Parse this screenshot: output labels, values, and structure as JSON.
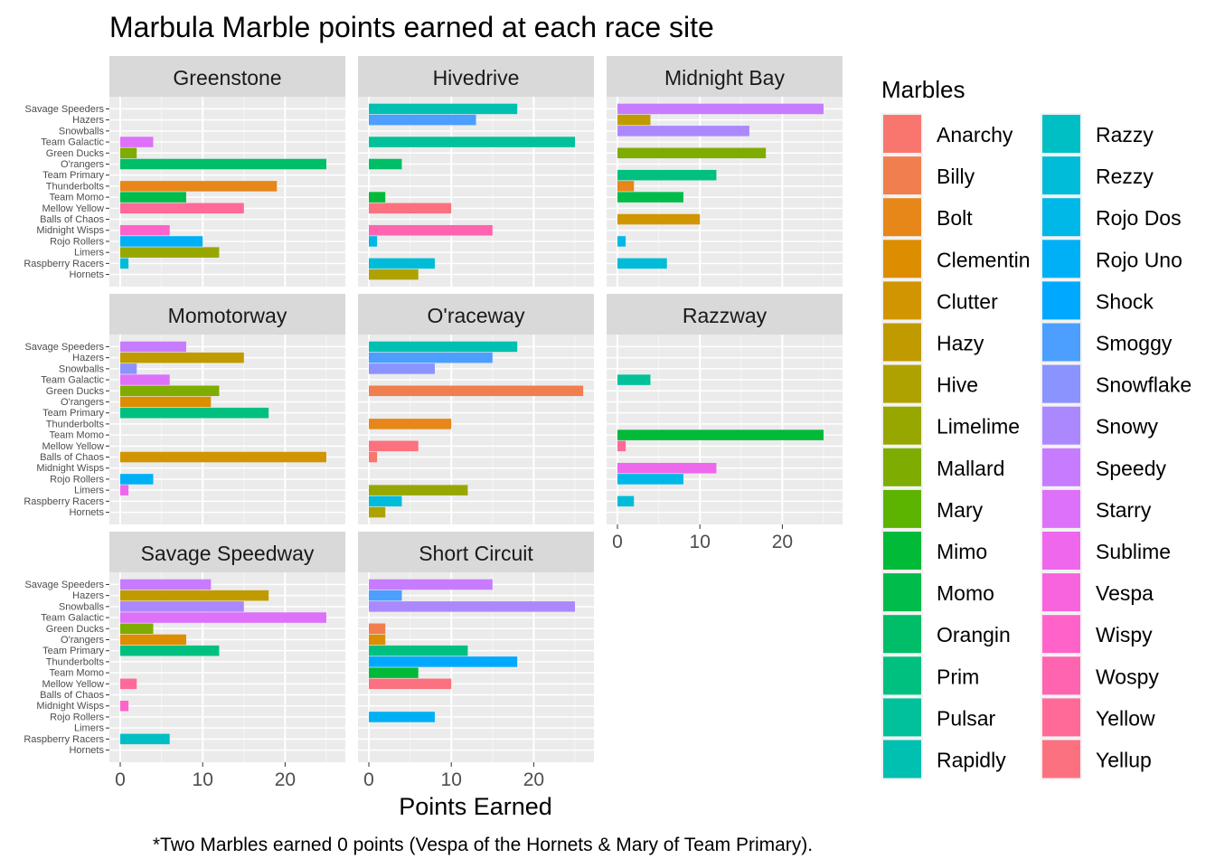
{
  "chart_data": {
    "type": "bar",
    "orientation": "horizontal",
    "title": "Marbula Marble points earned at each race site",
    "xlabel": "Points Earned",
    "ylabel": "",
    "caption": "*Two Marbles earned 0 points (Vespa of the Hornets & Mary of Team Primary).",
    "xlim": [
      0,
      27.5
    ],
    "x_ticks": [
      "0",
      "10",
      "20"
    ],
    "legend_title": "Marbles",
    "legend_position": "right",
    "teams": [
      "Savage Speeders",
      "Hazers",
      "Snowballs",
      "Team Galactic",
      "Green Ducks",
      "O'rangers",
      "Team Primary",
      "Thunderbolts",
      "Team Momo",
      "Mellow Yellow",
      "Balls of Chaos",
      "Midnight Wisps",
      "Rojo Rollers",
      "Limers",
      "Raspberry Racers",
      "Hornets"
    ],
    "marbles": [
      {
        "name": "Anarchy",
        "color": "#F8766D"
      },
      {
        "name": "Billy",
        "color": "#F17E4F"
      },
      {
        "name": "Bolt",
        "color": "#E78619"
      },
      {
        "name": "Clementin",
        "color": "#DD8D00"
      },
      {
        "name": "Clutter",
        "color": "#D09500"
      },
      {
        "name": "Hazy",
        "color": "#C09B00"
      },
      {
        "name": "Hive",
        "color": "#AEA200"
      },
      {
        "name": "Limelime",
        "color": "#98A700"
      },
      {
        "name": "Mallard",
        "color": "#7EAC00"
      },
      {
        "name": "Mary",
        "color": "#5CB300"
      },
      {
        "name": "Mimo",
        "color": "#00BA38"
      },
      {
        "name": "Momo",
        "color": "#00BC4A"
      },
      {
        "name": "Orangin",
        "color": "#00BE67"
      },
      {
        "name": "Prim",
        "color": "#00C080"
      },
      {
        "name": "Pulsar",
        "color": "#00C19A"
      },
      {
        "name": "Rapidly",
        "color": "#00C0B1"
      },
      {
        "name": "Razzy",
        "color": "#00BFC4"
      },
      {
        "name": "Rezzy",
        "color": "#00BCD8"
      },
      {
        "name": "Rojo Dos",
        "color": "#00B8E7"
      },
      {
        "name": "Rojo Uno",
        "color": "#00B0F6"
      },
      {
        "name": "Shock",
        "color": "#00A9FF"
      },
      {
        "name": "Smoggy",
        "color": "#4C9EFF"
      },
      {
        "name": "Snowflake",
        "color": "#8B93FF"
      },
      {
        "name": "Snowy",
        "color": "#AC88FF"
      },
      {
        "name": "Speedy",
        "color": "#C77CFF"
      },
      {
        "name": "Starry",
        "color": "#DD71FA"
      },
      {
        "name": "Sublime",
        "color": "#EE67EC"
      },
      {
        "name": "Vespa",
        "color": "#F864DD"
      },
      {
        "name": "Wispy",
        "color": "#FF63C9"
      },
      {
        "name": "Wospy",
        "color": "#FF64B0"
      },
      {
        "name": "Yellow",
        "color": "#FF6A98"
      },
      {
        "name": "Yellup",
        "color": "#FC717F"
      }
    ],
    "panels": [
      {
        "site": "Greenstone",
        "bars": [
          {
            "team": "Team Galactic",
            "marble": "Starry",
            "points": 4
          },
          {
            "team": "Green Ducks",
            "marble": "Mallard",
            "points": 2
          },
          {
            "team": "O'rangers",
            "marble": "Orangin",
            "points": 25
          },
          {
            "team": "Thunderbolts",
            "marble": "Bolt",
            "points": 19
          },
          {
            "team": "Team Momo",
            "marble": "Momo",
            "points": 8
          },
          {
            "team": "Mellow Yellow",
            "marble": "Yellow",
            "points": 15
          },
          {
            "team": "Midnight Wisps",
            "marble": "Wispy",
            "points": 6
          },
          {
            "team": "Rojo Rollers",
            "marble": "Rojo Uno",
            "points": 10
          },
          {
            "team": "Limers",
            "marble": "Limelime",
            "points": 12
          },
          {
            "team": "Raspberry Racers",
            "marble": "Rezzy",
            "points": 1
          }
        ]
      },
      {
        "site": "Hivedrive",
        "bars": [
          {
            "team": "Savage Speeders",
            "marble": "Rapidly",
            "points": 18
          },
          {
            "team": "Hazers",
            "marble": "Smoggy",
            "points": 13
          },
          {
            "team": "Team Galactic",
            "marble": "Pulsar",
            "points": 25
          },
          {
            "team": "O'rangers",
            "marble": "Orangin",
            "points": 4
          },
          {
            "team": "Team Momo",
            "marble": "Mimo",
            "points": 2
          },
          {
            "team": "Mellow Yellow",
            "marble": "Yellup",
            "points": 10
          },
          {
            "team": "Midnight Wisps",
            "marble": "Wospy",
            "points": 15
          },
          {
            "team": "Rojo Rollers",
            "marble": "Rojo Dos",
            "points": 1
          },
          {
            "team": "Raspberry Racers",
            "marble": "Rezzy",
            "points": 8
          },
          {
            "team": "Hornets",
            "marble": "Hive",
            "points": 6
          }
        ]
      },
      {
        "site": "Midnight Bay",
        "bars": [
          {
            "team": "Savage Speeders",
            "marble": "Speedy",
            "points": 25
          },
          {
            "team": "Hazers",
            "marble": "Hazy",
            "points": 4
          },
          {
            "team": "Snowballs",
            "marble": "Snowy",
            "points": 16
          },
          {
            "team": "Green Ducks",
            "marble": "Mallard",
            "points": 18
          },
          {
            "team": "Team Primary",
            "marble": "Prim",
            "points": 12
          },
          {
            "team": "Thunderbolts",
            "marble": "Bolt",
            "points": 2
          },
          {
            "team": "Team Momo",
            "marble": "Momo",
            "points": 8
          },
          {
            "team": "Balls of Chaos",
            "marble": "Clutter",
            "points": 10
          },
          {
            "team": "Rojo Rollers",
            "marble": "Rojo Dos",
            "points": 1
          },
          {
            "team": "Raspberry Racers",
            "marble": "Rezzy",
            "points": 6
          }
        ]
      },
      {
        "site": "Momotorway",
        "bars": [
          {
            "team": "Savage Speeders",
            "marble": "Speedy",
            "points": 8
          },
          {
            "team": "Hazers",
            "marble": "Hazy",
            "points": 15
          },
          {
            "team": "Snowballs",
            "marble": "Snowflake",
            "points": 2
          },
          {
            "team": "Team Galactic",
            "marble": "Starry",
            "points": 6
          },
          {
            "team": "Green Ducks",
            "marble": "Mallard",
            "points": 12
          },
          {
            "team": "O'rangers",
            "marble": "Clementin",
            "points": 11
          },
          {
            "team": "Team Primary",
            "marble": "Prim",
            "points": 18
          },
          {
            "team": "Balls of Chaos",
            "marble": "Clutter",
            "points": 25
          },
          {
            "team": "Rojo Rollers",
            "marble": "Rojo Uno",
            "points": 4
          },
          {
            "team": "Limers",
            "marble": "Sublime",
            "points": 1
          }
        ]
      },
      {
        "site": "O'raceway",
        "bars": [
          {
            "team": "Savage Speeders",
            "marble": "Rapidly",
            "points": 18
          },
          {
            "team": "Hazers",
            "marble": "Smoggy",
            "points": 15
          },
          {
            "team": "Snowballs",
            "marble": "Snowflake",
            "points": 8
          },
          {
            "team": "Green Ducks",
            "marble": "Billy",
            "points": 26
          },
          {
            "team": "Thunderbolts",
            "marble": "Bolt",
            "points": 10
          },
          {
            "team": "Mellow Yellow",
            "marble": "Yellup",
            "points": 6
          },
          {
            "team": "Balls of Chaos",
            "marble": "Anarchy",
            "points": 1
          },
          {
            "team": "Limers",
            "marble": "Limelime",
            "points": 12
          },
          {
            "team": "Raspberry Racers",
            "marble": "Rezzy",
            "points": 4
          },
          {
            "team": "Hornets",
            "marble": "Hive",
            "points": 2
          }
        ]
      },
      {
        "site": "Razzway",
        "bars": [
          {
            "team": "Team Galactic",
            "marble": "Pulsar",
            "points": 4
          },
          {
            "team": "Team Momo",
            "marble": "Mimo",
            "points": 25
          },
          {
            "team": "Mellow Yellow",
            "marble": "Yellow",
            "points": 1
          },
          {
            "team": "Midnight Wisps",
            "marble": "Sublime",
            "points": 12
          },
          {
            "team": "Rojo Rollers",
            "marble": "Rojo Dos",
            "points": 8
          },
          {
            "team": "Raspberry Racers",
            "marble": "Rezzy",
            "points": 2
          }
        ]
      },
      {
        "site": "Savage Speedway",
        "bars": [
          {
            "team": "Savage Speeders",
            "marble": "Speedy",
            "points": 11
          },
          {
            "team": "Hazers",
            "marble": "Hazy",
            "points": 18
          },
          {
            "team": "Snowballs",
            "marble": "Snowy",
            "points": 15
          },
          {
            "team": "Team Galactic",
            "marble": "Starry",
            "points": 25
          },
          {
            "team": "Green Ducks",
            "marble": "Mallard",
            "points": 4
          },
          {
            "team": "O'rangers",
            "marble": "Clementin",
            "points": 8
          },
          {
            "team": "Team Primary",
            "marble": "Prim",
            "points": 12
          },
          {
            "team": "Mellow Yellow",
            "marble": "Yellow",
            "points": 2
          },
          {
            "team": "Midnight Wisps",
            "marble": "Wispy",
            "points": 1
          },
          {
            "team": "Raspberry Racers",
            "marble": "Razzy",
            "points": 6
          }
        ]
      },
      {
        "site": "Short Circuit",
        "bars": [
          {
            "team": "Savage Speeders",
            "marble": "Speedy",
            "points": 15
          },
          {
            "team": "Hazers",
            "marble": "Smoggy",
            "points": 4
          },
          {
            "team": "Snowballs",
            "marble": "Snowy",
            "points": 25
          },
          {
            "team": "Green Ducks",
            "marble": "Billy",
            "points": 2
          },
          {
            "team": "O'rangers",
            "marble": "Clementin",
            "points": 2
          },
          {
            "team": "Team Primary",
            "marble": "Prim",
            "points": 12
          },
          {
            "team": "Thunderbolts",
            "marble": "Shock",
            "points": 18
          },
          {
            "team": "Team Momo",
            "marble": "Mimo",
            "points": 6
          },
          {
            "team": "Mellow Yellow",
            "marble": "Yellup",
            "points": 10
          },
          {
            "team": "Rojo Rollers",
            "marble": "Rojo Uno",
            "points": 8
          }
        ]
      }
    ]
  }
}
